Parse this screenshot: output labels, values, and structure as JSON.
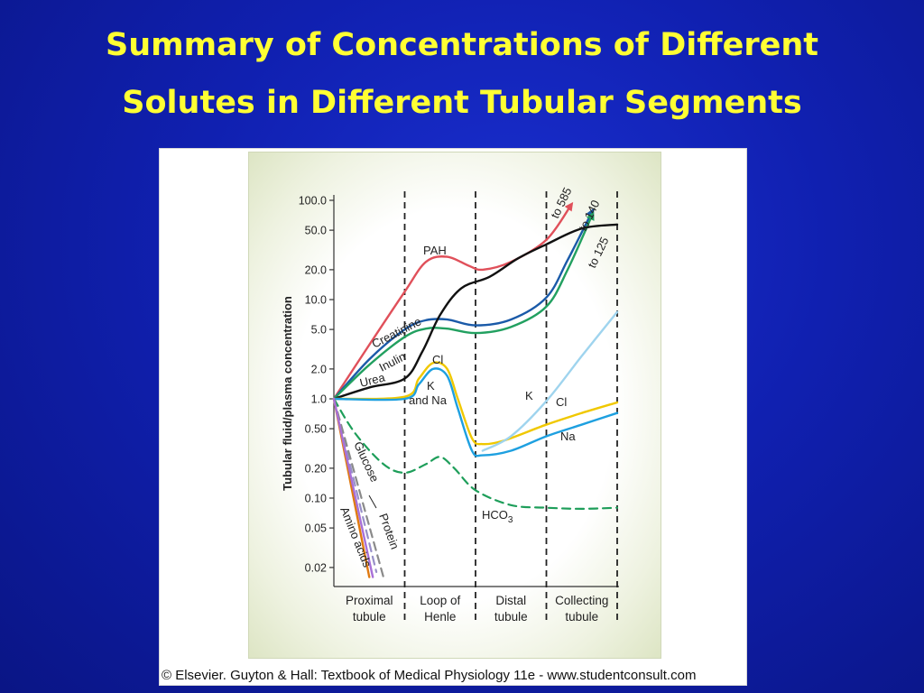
{
  "slide": {
    "title_line1": "Summary of Concentrations of Different",
    "title_line2": "Solutes in Different Tubular Segments"
  },
  "figure": {
    "copyright": "© Elsevier. Guyton & Hall: Textbook of Medical Physiology 11e - www.studentconsult.com"
  },
  "chart_data": {
    "type": "line",
    "ylabel": "Tubular fluid/plasma concentration",
    "yscale": "log",
    "ylim": [
      0.015,
      100
    ],
    "yticks": [
      "100.0",
      "50.0",
      "20.0",
      "10.0",
      "5.0",
      "2.0",
      "1.0",
      "0.50",
      "0.20",
      "0.10",
      "0.05",
      "0.02"
    ],
    "ytick_values": [
      100,
      50,
      20,
      10,
      5,
      2,
      1,
      0.5,
      0.2,
      0.1,
      0.05,
      0.02
    ],
    "x_axis": "position along nephron (0 = start, 4 = end; each unit = one segment)",
    "segments": [
      {
        "line1": "Proximal",
        "line2": "tubule"
      },
      {
        "line1": "Loop of",
        "line2": "Henle"
      },
      {
        "line1": "Distal",
        "line2": "tubule"
      },
      {
        "line1": "Collecting",
        "line2": "tubule"
      }
    ],
    "series": [
      {
        "name": "PAH",
        "color": "#e0505a",
        "dashed": false,
        "arrow": "to 585",
        "points": [
          [
            0,
            1.0
          ],
          [
            0.5,
            3.5
          ],
          [
            1,
            12
          ],
          [
            1.3,
            24
          ],
          [
            1.6,
            27
          ],
          [
            1.9,
            22
          ],
          [
            2.1,
            20
          ],
          [
            2.5,
            24
          ],
          [
            3,
            40
          ],
          [
            3.35,
            90
          ]
        ]
      },
      {
        "name": "Creatinine",
        "color": "#1a5aa8",
        "dashed": false,
        "arrow": "to 140",
        "points": [
          [
            0,
            1.0
          ],
          [
            0.5,
            2.5
          ],
          [
            1,
            5
          ],
          [
            1.3,
            6.2
          ],
          [
            1.6,
            6.3
          ],
          [
            2,
            5.5
          ],
          [
            2.5,
            6.3
          ],
          [
            3,
            10.5
          ],
          [
            3.3,
            25
          ],
          [
            3.65,
            78
          ]
        ]
      },
      {
        "name": "Inulin",
        "color": "#22a060",
        "dashed": false,
        "arrow": "to 125",
        "points": [
          [
            0,
            1.0
          ],
          [
            0.5,
            2.2
          ],
          [
            1,
            4.2
          ],
          [
            1.3,
            5.1
          ],
          [
            1.6,
            5.1
          ],
          [
            2,
            4.6
          ],
          [
            2.5,
            5.3
          ],
          [
            3,
            8.5
          ],
          [
            3.3,
            20
          ],
          [
            3.65,
            72
          ]
        ]
      },
      {
        "name": "Urea",
        "color": "#111111",
        "dashed": false,
        "points": [
          [
            0,
            1.0
          ],
          [
            0.5,
            1.3
          ],
          [
            1,
            1.6
          ],
          [
            1.25,
            3
          ],
          [
            1.5,
            7
          ],
          [
            1.8,
            13
          ],
          [
            2.2,
            17
          ],
          [
            2.6,
            26
          ],
          [
            3,
            36
          ],
          [
            3.5,
            52
          ],
          [
            4,
            57
          ]
        ]
      },
      {
        "name": "Cl",
        "color": "#f0c800",
        "dashed": false,
        "points": [
          [
            0,
            1.0
          ],
          [
            1,
            1.05
          ],
          [
            1.2,
            1.6
          ],
          [
            1.4,
            2.3
          ],
          [
            1.6,
            2.0
          ],
          [
            1.75,
            1.0
          ],
          [
            1.95,
            0.4
          ],
          [
            2.1,
            0.35
          ],
          [
            2.4,
            0.38
          ],
          [
            3,
            0.55
          ],
          [
            3.5,
            0.72
          ],
          [
            4,
            0.92
          ]
        ]
      },
      {
        "name": "K and Na",
        "color": "#1ea0e0",
        "dashed": false,
        "points": [
          [
            0,
            1.0
          ],
          [
            1,
            1.0
          ],
          [
            1.2,
            1.4
          ],
          [
            1.4,
            2.0
          ],
          [
            1.6,
            1.7
          ],
          [
            1.75,
            0.8
          ],
          [
            1.95,
            0.3
          ],
          [
            2.1,
            0.27
          ],
          [
            2.5,
            0.3
          ],
          [
            3,
            0.42
          ],
          [
            3.5,
            0.55
          ],
          [
            4,
            0.72
          ]
        ]
      },
      {
        "name": "K",
        "color": "#9fd4ee",
        "dashed": false,
        "points": [
          [
            2.1,
            0.3
          ],
          [
            2.5,
            0.42
          ],
          [
            3,
            0.95
          ],
          [
            3.5,
            2.7
          ],
          [
            4,
            7.5
          ]
        ]
      },
      {
        "name": "HCO3",
        "color": "#1e9e5a",
        "dashed": true,
        "points": [
          [
            0,
            1.0
          ],
          [
            0.3,
            0.45
          ],
          [
            0.7,
            0.22
          ],
          [
            1,
            0.18
          ],
          [
            1.3,
            0.22
          ],
          [
            1.5,
            0.26
          ],
          [
            1.7,
            0.2
          ],
          [
            2,
            0.12
          ],
          [
            2.5,
            0.085
          ],
          [
            3,
            0.08
          ],
          [
            3.5,
            0.078
          ],
          [
            4,
            0.08
          ]
        ]
      },
      {
        "name": "Glucose",
        "color": "#9890c8",
        "dashed": true,
        "points": [
          [
            0,
            1.0
          ],
          [
            0.6,
            0.018
          ]
        ]
      },
      {
        "name": "Protein",
        "color": "#8a8a8a",
        "dashed": true,
        "points": [
          [
            0,
            1.0
          ],
          [
            0.7,
            0.016
          ]
        ]
      },
      {
        "name": "Amino acids",
        "color": "#e07a10",
        "dashed": false,
        "points": [
          [
            0,
            1.0
          ],
          [
            0.5,
            0.016
          ]
        ]
      },
      {
        "name": "Amino acids",
        "color": "#a870d8",
        "dashed": false,
        "points": [
          [
            0,
            1.0
          ],
          [
            0.55,
            0.016
          ]
        ]
      }
    ],
    "labels": {
      "PAH": "PAH",
      "Creatinine": "Creatinine",
      "Inulin": "Inulin",
      "Urea": "Urea",
      "Cl": "Cl",
      "K": "K",
      "and_Na": "and Na",
      "K_distal": "K",
      "Cl_distal": "Cl",
      "Na_distal": "Na",
      "HCO": "HCO",
      "HCO_sub": "3",
      "Glucose": "Glucose",
      "Protein": "Protein",
      "Amino_acids": "Amino acids",
      "to585": "to 585",
      "to140": "to 140",
      "to125": "to 125"
    },
    "grid": false
  }
}
